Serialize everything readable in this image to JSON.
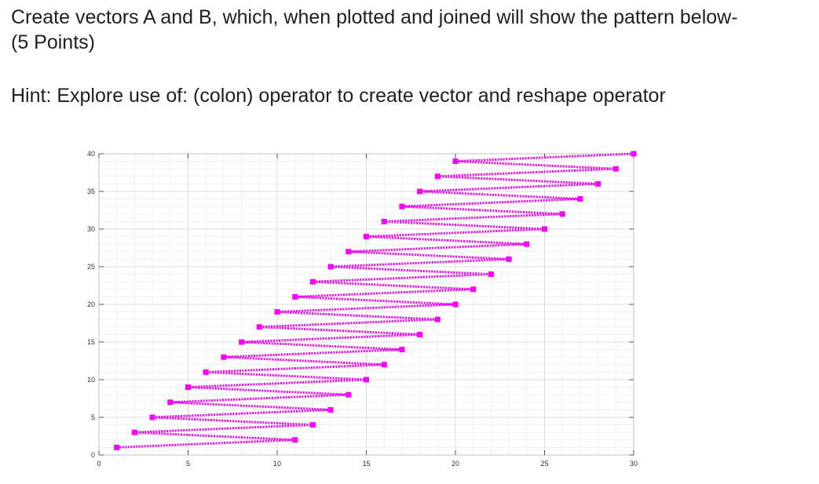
{
  "question": {
    "line1": "Create vectors A and B, which, when plotted and joined will show the pattern below-",
    "line2": "(5 Points)",
    "hint": "Hint: Explore use of: (colon) operator to create vector and reshape operator"
  },
  "chart_data": {
    "type": "line",
    "title": "",
    "xlabel": "",
    "ylabel": "",
    "xlim": [
      0,
      30
    ],
    "ylim": [
      0,
      40
    ],
    "xticks": [
      0,
      5,
      10,
      15,
      20,
      25,
      30
    ],
    "yticks": [
      0,
      5,
      10,
      15,
      20,
      25,
      30,
      35,
      40
    ],
    "grid": true,
    "line_color": "#ff00ff",
    "line_style": "dotted",
    "marker": "square",
    "series": [
      {
        "x": [
          1,
          11,
          2,
          12,
          3,
          13,
          4,
          14,
          5,
          15,
          6,
          16,
          7,
          17,
          8,
          18,
          9,
          19,
          10,
          20,
          11,
          21,
          12,
          22,
          13,
          23,
          14,
          24,
          15,
          25,
          16,
          26,
          17,
          27,
          18,
          28,
          19,
          29,
          20,
          30
        ],
        "y": [
          1,
          2,
          3,
          4,
          5,
          6,
          7,
          8,
          9,
          10,
          11,
          12,
          13,
          14,
          15,
          16,
          17,
          18,
          19,
          20,
          21,
          22,
          23,
          24,
          25,
          26,
          27,
          28,
          29,
          30,
          31,
          32,
          33,
          34,
          35,
          36,
          37,
          38,
          39,
          40
        ]
      }
    ]
  }
}
